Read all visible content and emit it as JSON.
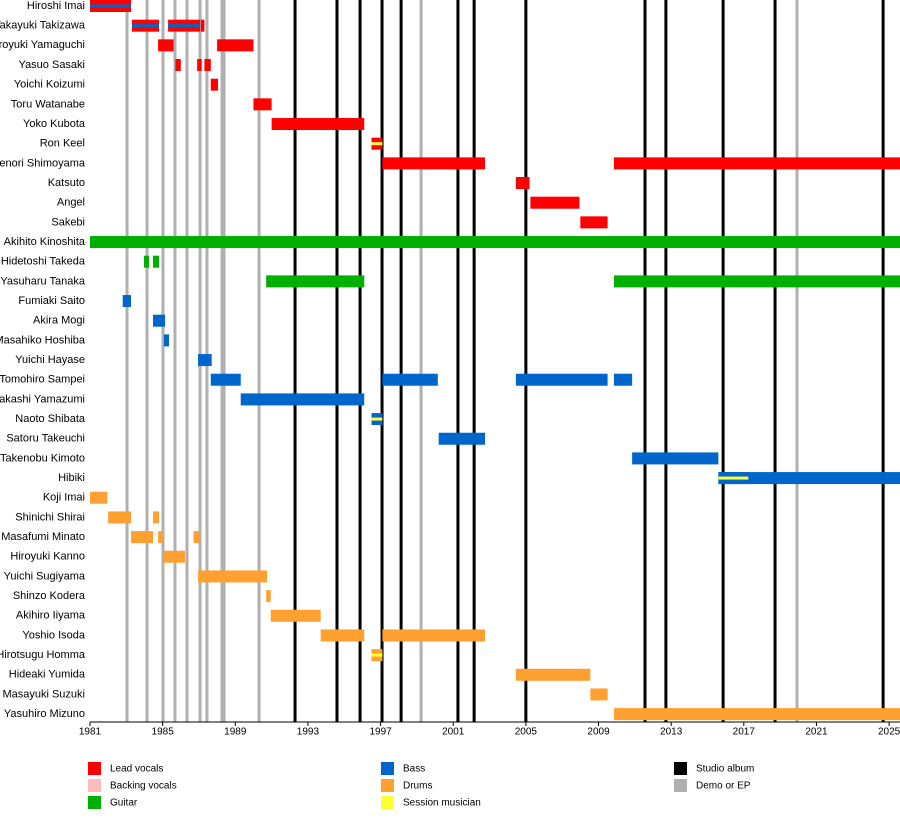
{
  "chart_data": {
    "type": "timeline",
    "xlim": [
      1981,
      2025.6
    ],
    "xticks": [
      1981,
      1985,
      1989,
      1993,
      1997,
      2001,
      2005,
      2009,
      2013,
      2017,
      2021,
      2025
    ],
    "roles": [
      {
        "name": "Lead vocals",
        "color": "#ff0000"
      },
      {
        "name": "Backing vocals",
        "color": "#ffbbbb"
      },
      {
        "name": "Guitar",
        "color": "#00b000"
      },
      {
        "name": "Bass",
        "color": "#0066cc"
      },
      {
        "name": "Drums",
        "color": "#ffa030"
      },
      {
        "name": "Session musician",
        "color": "#ffff33"
      }
    ],
    "events": [
      {
        "name": "Studio album",
        "color": "#000000",
        "x": [
          1992.29,
          1994.6,
          1995.87,
          1997.08,
          1998.13,
          2001.26,
          2002.15,
          2005.0,
          2011.56,
          2012.71,
          2015.86,
          2018.72,
          2024.67
        ]
      },
      {
        "name": "Demo or EP",
        "color": "#b0b0b0",
        "x": [
          1983.04,
          1984.14,
          1985.02,
          1985.68,
          1986.34,
          1987.06,
          1987.44,
          1988.27,
          1988.38,
          1990.31,
          1999.23,
          2019.93
        ]
      }
    ],
    "members": [
      {
        "name": "Hiroshi Imai",
        "bars": [
          {
            "start": 1981,
            "end": 1983.26,
            "role": "Lead vocals",
            "stripe": "Bass"
          }
        ]
      },
      {
        "name": "Takayuki Takizawa",
        "bars": [
          {
            "start": 1983.31,
            "end": 1984.8,
            "role": "Lead vocals",
            "stripe": "Bass"
          },
          {
            "start": 1985.3,
            "end": 1987.06,
            "role": "Lead vocals",
            "stripe": "Bass"
          },
          {
            "start": 1987.1,
            "end": 1987.3,
            "role": "Lead vocals"
          }
        ]
      },
      {
        "name": "Hiroyuki Yamaguchi",
        "bars": [
          {
            "start": 1984.75,
            "end": 1985.6,
            "role": "Lead vocals"
          },
          {
            "start": 1988.0,
            "end": 1990.0,
            "role": "Lead vocals"
          }
        ]
      },
      {
        "name": "Yasuo Sasaki",
        "bars": [
          {
            "start": 1985.7,
            "end": 1986.0,
            "role": "Lead vocals"
          },
          {
            "start": 1986.9,
            "end": 1987.15,
            "role": "Lead vocals"
          },
          {
            "start": 1987.3,
            "end": 1987.65,
            "role": "Lead vocals"
          }
        ]
      },
      {
        "name": "Yoichi Koizumi",
        "bars": [
          {
            "start": 1987.65,
            "end": 1988.05,
            "role": "Lead vocals"
          }
        ]
      },
      {
        "name": "Toru Watanabe",
        "bars": [
          {
            "start": 1990.0,
            "end": 1991.0,
            "role": "Lead vocals"
          }
        ]
      },
      {
        "name": "Yoko Kubota",
        "bars": [
          {
            "start": 1991.0,
            "end": 1996.1,
            "role": "Lead vocals"
          }
        ]
      },
      {
        "name": "Ron Keel",
        "bars": [
          {
            "start": 1996.5,
            "end": 1997.1,
            "role": "Lead vocals",
            "stripe": "Session musician"
          }
        ]
      },
      {
        "name": "Takenori Shimoyama",
        "bars": [
          {
            "start": 1997.1,
            "end": 2002.75,
            "role": "Lead vocals"
          },
          {
            "start": 2009.85,
            "end": 2025.6,
            "role": "Lead vocals"
          }
        ]
      },
      {
        "name": "Katsuto",
        "bars": [
          {
            "start": 2004.45,
            "end": 2005.2,
            "role": "Lead vocals"
          }
        ]
      },
      {
        "name": "Angel",
        "bars": [
          {
            "start": 2005.25,
            "end": 2007.95,
            "role": "Lead vocals"
          }
        ]
      },
      {
        "name": "Sakebi",
        "bars": [
          {
            "start": 2008.0,
            "end": 2009.5,
            "role": "Lead vocals"
          }
        ]
      },
      {
        "name": "Akihito Kinoshita",
        "bars": [
          {
            "start": 1981,
            "end": 2025.6,
            "role": "Guitar"
          }
        ]
      },
      {
        "name": "Hidetoshi Takeda",
        "bars": [
          {
            "start": 1983.97,
            "end": 1984.25,
            "role": "Guitar"
          },
          {
            "start": 1984.47,
            "end": 1984.8,
            "role": "Guitar"
          }
        ]
      },
      {
        "name": "Yasuharu Tanaka",
        "bars": [
          {
            "start": 1990.7,
            "end": 1996.1,
            "role": "Guitar"
          },
          {
            "start": 2009.85,
            "end": 2025.6,
            "role": "Guitar"
          }
        ]
      },
      {
        "name": "Fumiaki Saito",
        "bars": [
          {
            "start": 1982.8,
            "end": 1983.26,
            "role": "Bass"
          }
        ]
      },
      {
        "name": "Akira Mogi",
        "bars": [
          {
            "start": 1984.47,
            "end": 1985.13,
            "role": "Bass"
          }
        ]
      },
      {
        "name": "Masahiko Hoshiba",
        "bars": [
          {
            "start": 1985.07,
            "end": 1985.35,
            "role": "Bass"
          }
        ]
      },
      {
        "name": "Yuichi Hayase",
        "bars": [
          {
            "start": 1986.95,
            "end": 1987.7,
            "role": "Bass"
          }
        ]
      },
      {
        "name": "Tomohiro Sampei",
        "bars": [
          {
            "start": 1987.65,
            "end": 1989.3,
            "role": "Bass"
          },
          {
            "start": 1997.1,
            "end": 2000.15,
            "role": "Bass"
          },
          {
            "start": 2004.45,
            "end": 2009.5,
            "role": "Bass"
          },
          {
            "start": 2009.85,
            "end": 2010.85,
            "role": "Bass"
          }
        ]
      },
      {
        "name": "Takashi Yamazumi",
        "bars": [
          {
            "start": 1989.3,
            "end": 1996.1,
            "role": "Bass"
          }
        ]
      },
      {
        "name": "Naoto Shibata",
        "bars": [
          {
            "start": 1996.5,
            "end": 1997.1,
            "role": "Bass",
            "stripe": "Session musician"
          }
        ]
      },
      {
        "name": "Satoru Takeuchi",
        "bars": [
          {
            "start": 2000.2,
            "end": 2002.75,
            "role": "Bass"
          }
        ]
      },
      {
        "name": "Takenobu Kimoto",
        "bars": [
          {
            "start": 2010.85,
            "end": 2015.6,
            "role": "Bass"
          }
        ]
      },
      {
        "name": "Hibiki",
        "bars": [
          {
            "start": 2015.6,
            "end": 2025.6,
            "role": "Bass"
          },
          {
            "start": 2015.6,
            "end": 2017.25,
            "role": "Bass",
            "stripe": "Session musician"
          }
        ]
      },
      {
        "name": "Koji Imai",
        "bars": [
          {
            "start": 1981,
            "end": 1981.95,
            "role": "Drums"
          }
        ]
      },
      {
        "name": "Shinichi Shirai",
        "bars": [
          {
            "start": 1982.0,
            "end": 1983.26,
            "role": "Drums"
          },
          {
            "start": 1984.47,
            "end": 1984.8,
            "role": "Drums"
          }
        ]
      },
      {
        "name": "Masafumi Minato",
        "bars": [
          {
            "start": 1983.26,
            "end": 1984.47,
            "role": "Drums"
          },
          {
            "start": 1984.75,
            "end": 1985.0,
            "role": "Drums"
          },
          {
            "start": 1986.7,
            "end": 1987.0,
            "role": "Drums"
          }
        ]
      },
      {
        "name": "Hiroyuki Kanno",
        "bars": [
          {
            "start": 1985.07,
            "end": 1986.23,
            "role": "Drums"
          }
        ]
      },
      {
        "name": "Yuichi Sugiyama",
        "bars": [
          {
            "start": 1986.95,
            "end": 1990.75,
            "role": "Drums"
          }
        ]
      },
      {
        "name": "Shinzo Kodera",
        "bars": [
          {
            "start": 1990.7,
            "end": 1990.95,
            "role": "Drums"
          }
        ]
      },
      {
        "name": "Akihiro Iiyama",
        "bars": [
          {
            "start": 1990.95,
            "end": 1993.7,
            "role": "Drums"
          }
        ]
      },
      {
        "name": "Yoshio Isoda",
        "bars": [
          {
            "start": 1993.7,
            "end": 1996.1,
            "role": "Drums"
          },
          {
            "start": 1997.1,
            "end": 2002.75,
            "role": "Drums"
          }
        ]
      },
      {
        "name": "Hirotsugu Homma",
        "bars": [
          {
            "start": 1996.5,
            "end": 1997.1,
            "role": "Drums",
            "stripe": "Session musician"
          }
        ]
      },
      {
        "name": "Hideaki Yumida",
        "bars": [
          {
            "start": 2004.45,
            "end": 2008.55,
            "role": "Drums"
          }
        ]
      },
      {
        "name": "Masayuki Suzuki",
        "bars": [
          {
            "start": 2008.55,
            "end": 2009.5,
            "role": "Drums"
          }
        ]
      },
      {
        "name": "Yasuhiro Mizuno",
        "bars": [
          {
            "start": 2009.85,
            "end": 2025.6,
            "role": "Drums"
          }
        ]
      }
    ]
  }
}
